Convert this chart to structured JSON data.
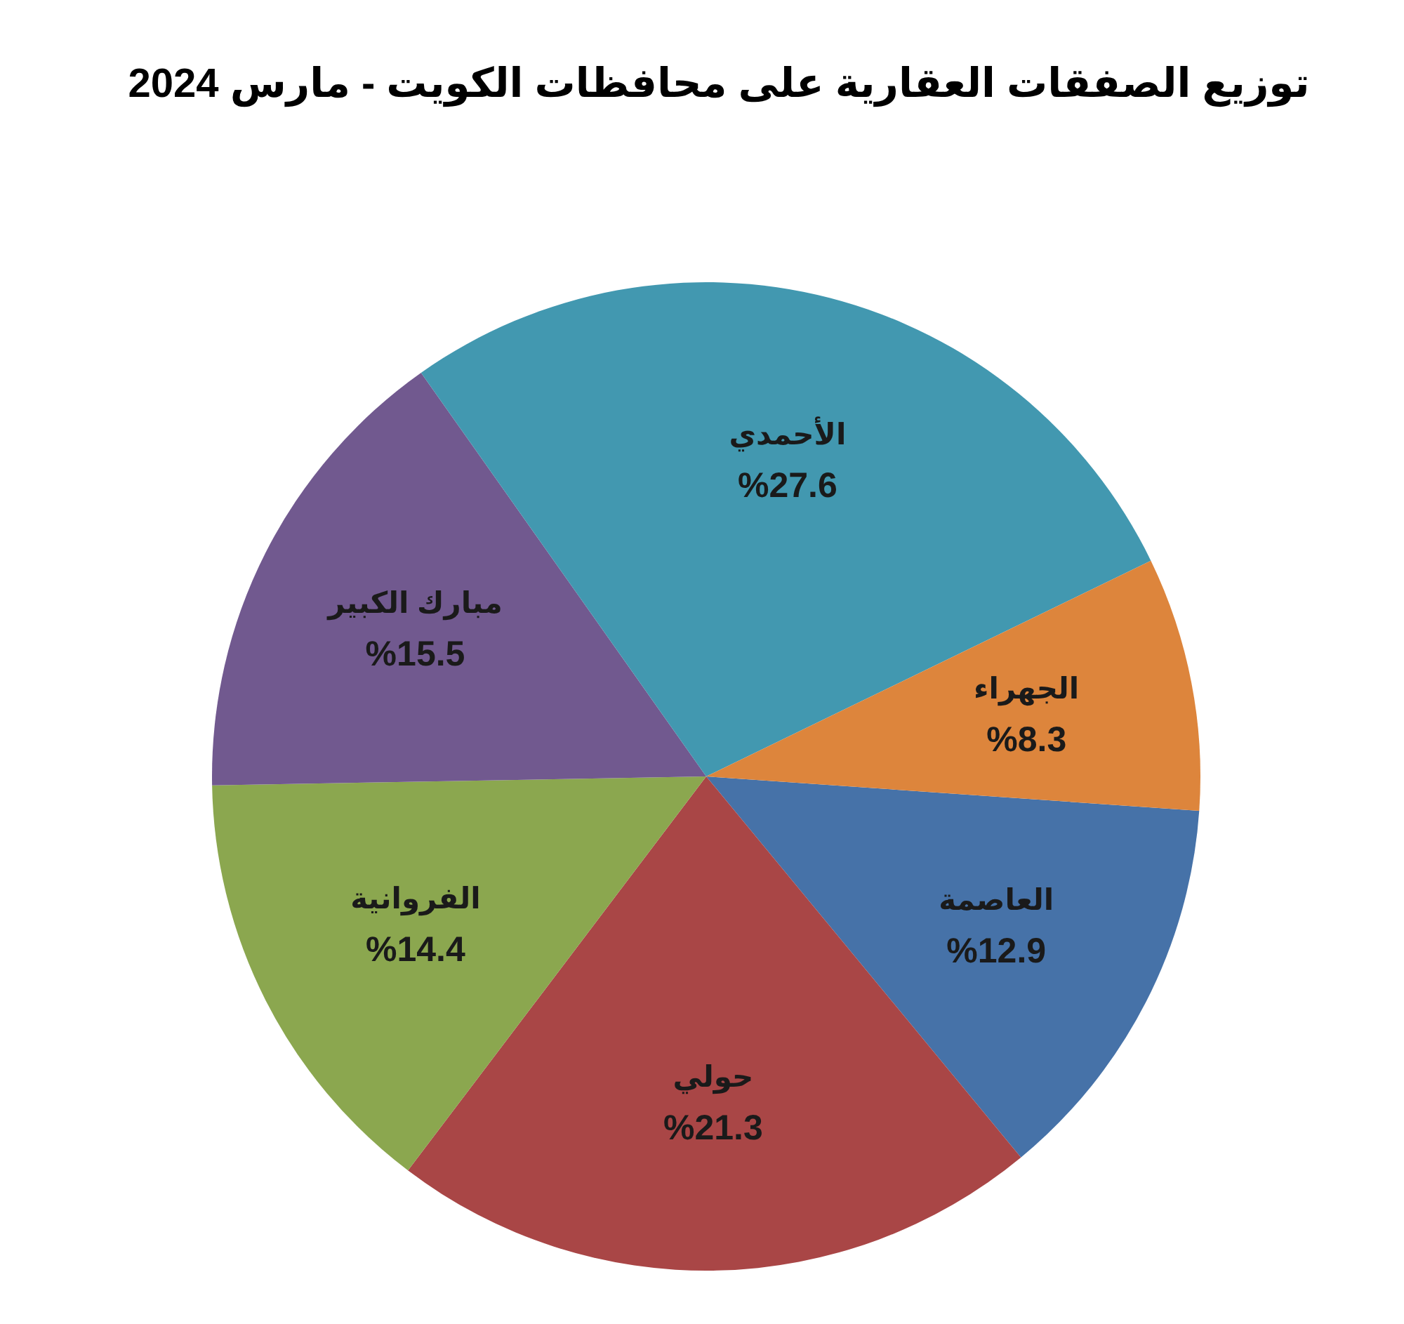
{
  "chart_data": {
    "type": "pie",
    "title": "توزيع الصفقات العقارية على محافظات الكويت - مارس 2024",
    "categories": [
      "العاصمة",
      "حولي",
      "الفروانية",
      "مبارك الكبير",
      "الأحمدي",
      "الجهراء"
    ],
    "values": [
      12.9,
      21.3,
      14.4,
      15.5,
      27.6,
      8.3
    ],
    "value_labels": [
      "%12.9",
      "%21.3",
      "%14.4",
      "%15.5",
      "%27.6",
      "%8.3"
    ],
    "colors": [
      "#4672a8",
      "#a94646",
      "#8ba74f",
      "#71598f",
      "#4298b0",
      "#dd853c"
    ]
  }
}
